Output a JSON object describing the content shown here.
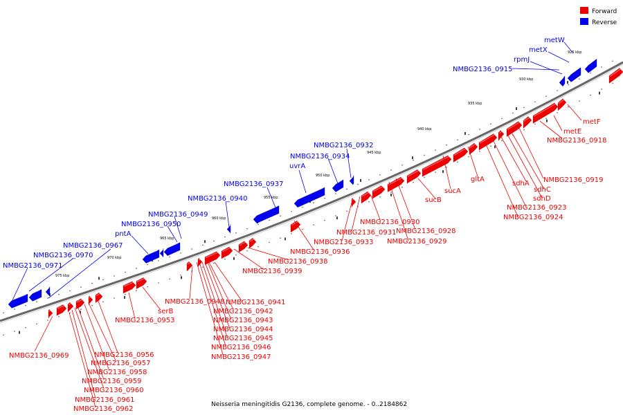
{
  "colors": {
    "forward": "#ee0000",
    "reverse": "#0000ee",
    "backbone": "#666666"
  },
  "legend": {
    "forward": "Forward",
    "reverse": "Reverse"
  },
  "footer": "Neisseria meningitidis G2136, complete genome. - 0..2184862",
  "ticks": [
    "925 kbp",
    "930 kbp",
    "935 kbp",
    "940 kbp",
    "945 kbp",
    "950 kbp",
    "955 kbp",
    "960 kbp",
    "965 kbp",
    "970 kbp",
    "975 kbp"
  ],
  "forward_labels": [
    "metF",
    "metE",
    "NMBG2136_0918",
    "NMBG2136_0919",
    "sdhA",
    "sdhC",
    "sdhD",
    "NMBG2136_0923",
    "NMBG2136_0924",
    "gltA",
    "sucA",
    "sucB",
    "NMBG2136_0928",
    "NMBG2136_0929",
    "NMBG2136_0930",
    "NMBG2136_0931",
    "NMBG2136_0933",
    "NMBG2136_0936",
    "NMBG2136_0938",
    "NMBG2136_0939",
    "NMBG2136_0941",
    "NMBG2136_0942",
    "NMBG2136_0943",
    "NMBG2136_0944",
    "NMBG2136_0945",
    "NMBG2136_0946",
    "NMBG2136_0947",
    "NMBG2136_0948",
    "serB",
    "NMBG2136_0953",
    "NMBG2136_0956",
    "NMBG2136_0957",
    "NMBG2136_0958",
    "NMBG2136_0959",
    "NMBG2136_0960",
    "NMBG2136_0961",
    "NMBG2136_0962",
    "NMBG2136_0969"
  ],
  "reverse_labels": [
    "metW",
    "metX",
    "rpmJ",
    "NMBG2136_0915",
    "NMBG2136_0932",
    "NMBG2136_0934",
    "uvrA",
    "NMBG2136_0937",
    "NMBG2136_0940",
    "NMBG2136_0949",
    "NMBG2136_0950",
    "pntA",
    "NMBG2136_0967",
    "NMBG2136_0970",
    "NMBG2136_0971"
  ]
}
